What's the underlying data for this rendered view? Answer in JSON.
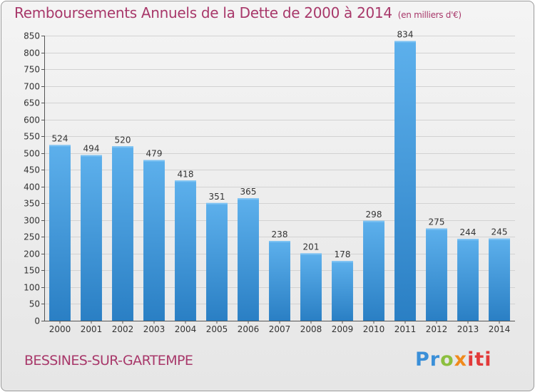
{
  "chart_data": {
    "type": "bar",
    "title": "Remboursements Annuels de la Dette de 2000 à 2014",
    "unit_note": "(en milliers d'€)",
    "categories": [
      "2000",
      "2001",
      "2002",
      "2003",
      "2004",
      "2005",
      "2006",
      "2007",
      "2008",
      "2009",
      "2010",
      "2011",
      "2012",
      "2013",
      "2014"
    ],
    "values": [
      524,
      494,
      520,
      479,
      418,
      351,
      365,
      238,
      201,
      178,
      298,
      834,
      275,
      244,
      245
    ],
    "ylim": [
      0,
      850
    ],
    "yticks": [
      0,
      50,
      100,
      150,
      200,
      250,
      300,
      350,
      400,
      450,
      500,
      550,
      600,
      650,
      700,
      750,
      800,
      850
    ],
    "xlabel": "",
    "ylabel": "",
    "grid": true,
    "bar_color": "#4a9fe0"
  },
  "commune": "BESSINES-SUR-GARTEMPE",
  "brand": {
    "part1": "Pr",
    "part2": "o",
    "part3": "x",
    "part4": "iti"
  }
}
